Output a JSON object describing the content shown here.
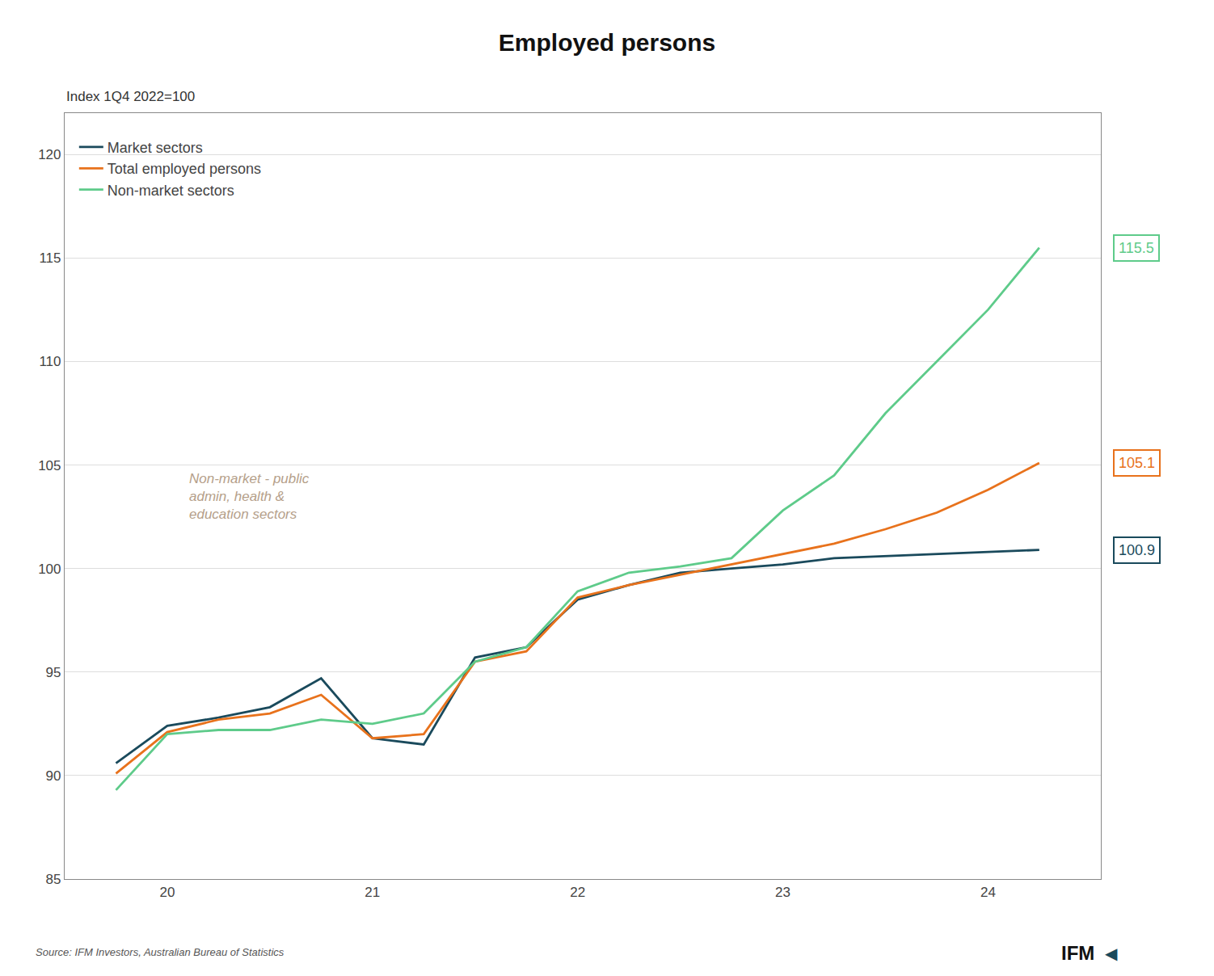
{
  "chart_data": {
    "type": "line",
    "title": "Employed persons",
    "subtitle": "Index 1Q4 2022=100",
    "source": "Source: IFM Investors, Australian Bureau of Statistics",
    "logo": [
      "IFM",
      "◀"
    ],
    "xlim": [
      19.5,
      24.55
    ],
    "ylim": [
      85,
      122
    ],
    "xticks": [
      20,
      21,
      22,
      23,
      24
    ],
    "yticks": [
      85,
      90,
      95,
      100,
      105,
      110,
      115,
      120
    ],
    "grid": "y",
    "legend": "upper left",
    "annotations": [
      {
        "text": "Non-market - public\nadmin, health &\neducation sectors",
        "x": 20.1,
        "y": 103.5,
        "color": "#b5a08a"
      }
    ],
    "x": [
      19.75,
      20.0,
      20.25,
      20.5,
      20.75,
      21.0,
      21.25,
      21.5,
      21.75,
      22.0,
      22.25,
      22.5,
      22.75,
      23.0,
      23.25,
      23.5,
      23.75,
      24.0,
      24.25
    ],
    "series": [
      {
        "name": "Market sectors",
        "color": "#1a4a5c",
        "values": [
          90.6,
          92.4,
          92.8,
          93.3,
          94.7,
          91.8,
          91.5,
          95.7,
          96.2,
          98.5,
          99.2,
          99.8,
          100.0,
          100.2,
          100.5,
          100.6,
          100.7,
          100.8,
          100.9
        ],
        "end_label": {
          "value": 100.9,
          "label": "100.9"
        }
      },
      {
        "name": "Total employed persons",
        "color": "#e8721c",
        "values": [
          90.1,
          92.1,
          92.7,
          93.0,
          93.9,
          91.8,
          92.0,
          95.5,
          96.0,
          98.6,
          99.2,
          99.7,
          100.2,
          100.7,
          101.2,
          101.9,
          102.7,
          103.8,
          105.1
        ],
        "end_label": {
          "value": 105.1,
          "label": "105.1"
        }
      },
      {
        "name": "Non-market sectors",
        "color": "#5ecb8a",
        "values": [
          89.3,
          92.0,
          92.2,
          92.2,
          92.7,
          92.5,
          93.0,
          95.5,
          96.2,
          98.9,
          99.8,
          100.1,
          100.5,
          102.8,
          104.5,
          107.5,
          110.0,
          112.5,
          115.5
        ],
        "end_label": {
          "value": 115.5,
          "label": "115.5"
        }
      }
    ]
  }
}
